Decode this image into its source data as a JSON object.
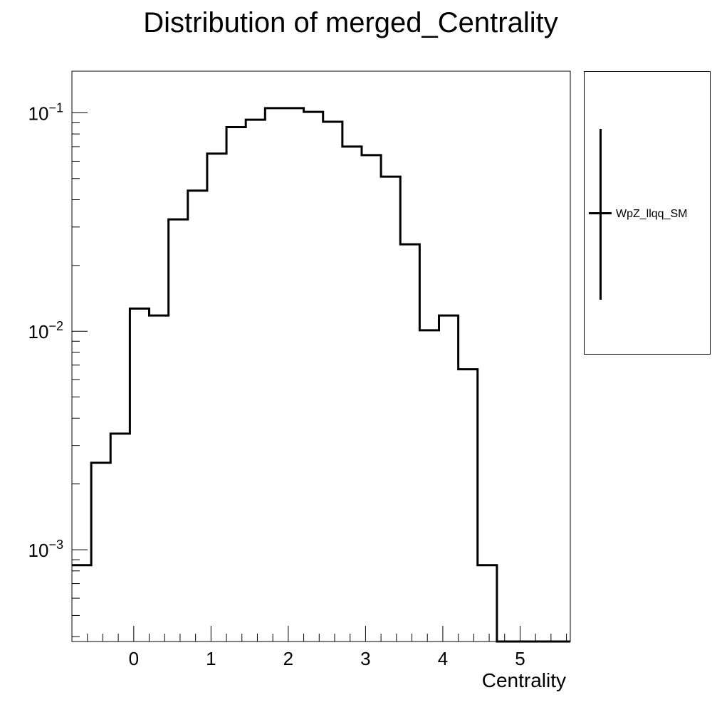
{
  "chart_data": {
    "type": "histogram",
    "title": "Distribution of merged_Centrality",
    "xlabel": "Centrality",
    "ylabel": "",
    "y_scale": "log",
    "xlim": [
      -0.8,
      5.65
    ],
    "ylim": [
      0.00038,
      0.155
    ],
    "x_ticks": [
      {
        "value": 0,
        "label": "0"
      },
      {
        "value": 1,
        "label": "1"
      },
      {
        "value": 2,
        "label": "2"
      },
      {
        "value": 3,
        "label": "3"
      },
      {
        "value": 4,
        "label": "4"
      },
      {
        "value": 5,
        "label": "5"
      }
    ],
    "y_ticks": [
      {
        "value": 0.1,
        "base": "10",
        "exp": "−1"
      },
      {
        "value": 0.01,
        "base": "10",
        "exp": "−2"
      },
      {
        "value": 0.001,
        "base": "10",
        "exp": "−3"
      }
    ],
    "bin_edges": [
      -0.8,
      -0.55,
      -0.3,
      -0.05,
      0.2,
      0.45,
      0.7,
      0.95,
      1.2,
      1.45,
      1.7,
      1.95,
      2.2,
      2.45,
      2.7,
      2.95,
      3.2,
      3.45,
      3.7,
      3.95,
      4.2,
      4.45,
      4.7,
      5.45,
      5.65
    ],
    "series": [
      {
        "name": "WpZ_llqq_SM",
        "color": "#000000",
        "values": [
          0.00085,
          0.0025,
          0.0034,
          0.0127,
          0.0118,
          0.0325,
          0.044,
          0.065,
          0.086,
          0.093,
          0.105,
          0.105,
          0.101,
          0.091,
          0.07,
          0.064,
          0.051,
          0.025,
          0.0101,
          0.0118,
          0.0067,
          0.00085,
          0.00038,
          0.00038
        ]
      }
    ],
    "grid": false,
    "legend_position": "right"
  }
}
